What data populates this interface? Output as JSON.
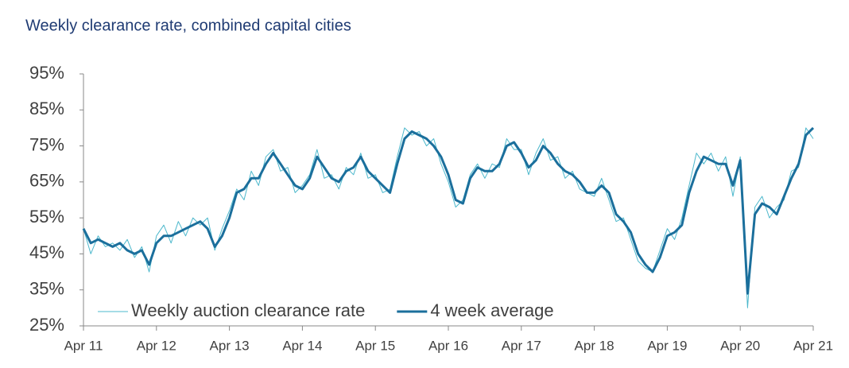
{
  "chart_data": {
    "type": "line",
    "title": "Weekly clearance rate, combined capital cities",
    "x": [
      0,
      0.1,
      0.2,
      0.3,
      0.4,
      0.5,
      0.6,
      0.7,
      0.8,
      0.9,
      1,
      1.1,
      1.2,
      1.3,
      1.4,
      1.5,
      1.6,
      1.7,
      1.8,
      1.9,
      2,
      2.1,
      2.2,
      2.3,
      2.4,
      2.5,
      2.6,
      2.7,
      2.8,
      2.9,
      3,
      3.1,
      3.2,
      3.3,
      3.4,
      3.5,
      3.6,
      3.7,
      3.8,
      3.9,
      4,
      4.1,
      4.2,
      4.3,
      4.4,
      4.5,
      4.6,
      4.7,
      4.8,
      4.9,
      5,
      5.1,
      5.2,
      5.3,
      5.4,
      5.5,
      5.6,
      5.7,
      5.8,
      5.9,
      6,
      6.1,
      6.2,
      6.3,
      6.4,
      6.5,
      6.6,
      6.7,
      6.8,
      6.9,
      7,
      7.1,
      7.2,
      7.3,
      7.4,
      7.5,
      7.6,
      7.7,
      7.8,
      7.9,
      8,
      8.1,
      8.2,
      8.3,
      8.4,
      8.5,
      8.6,
      8.7,
      8.8,
      8.9,
      9,
      9.1,
      9.2,
      9.3,
      9.4,
      9.5,
      9.6,
      9.7,
      9.8,
      9.9,
      10
    ],
    "series": [
      {
        "name": "Weekly auction clearance rate",
        "color": "#4db8cc",
        "values": [
          52,
          45,
          50,
          47,
          48,
          46,
          49,
          44,
          47,
          40,
          50,
          53,
          48,
          54,
          50,
          55,
          53,
          55,
          46,
          52,
          57,
          63,
          60,
          68,
          64,
          72,
          74,
          68,
          69,
          62,
          64,
          67,
          74,
          66,
          67,
          63,
          69,
          67,
          73,
          66,
          67,
          62,
          63,
          72,
          80,
          78,
          79,
          75,
          77,
          70,
          65,
          58,
          60,
          67,
          70,
          66,
          70,
          69,
          77,
          74,
          74,
          67,
          73,
          77,
          71,
          72,
          66,
          68,
          63,
          62,
          61,
          66,
          60,
          54,
          55,
          49,
          43,
          41,
          40,
          46,
          52,
          49,
          55,
          64,
          73,
          70,
          73,
          68,
          72,
          61,
          72,
          30,
          58,
          61,
          55,
          58,
          60,
          68,
          69,
          80,
          77
        ]
      },
      {
        "name": "4 week average",
        "color": "#1b6f9c",
        "values": [
          52,
          48,
          49,
          48,
          47,
          48,
          46,
          45,
          46,
          42,
          48,
          50,
          50,
          51,
          52,
          53,
          54,
          52,
          47,
          50,
          55,
          62,
          63,
          66,
          66,
          70,
          73,
          70,
          67,
          64,
          63,
          66,
          72,
          69,
          66,
          65,
          68,
          69,
          72,
          68,
          66,
          64,
          62,
          70,
          77,
          79,
          78,
          77,
          75,
          72,
          67,
          60,
          59,
          66,
          69,
          68,
          68,
          70,
          75,
          76,
          73,
          69,
          71,
          75,
          73,
          70,
          68,
          67,
          65,
          62,
          62,
          64,
          62,
          56,
          54,
          51,
          45,
          42,
          40,
          44,
          50,
          51,
          53,
          62,
          68,
          72,
          71,
          70,
          70,
          64,
          71,
          34,
          56,
          59,
          58,
          56,
          61,
          66,
          70,
          78,
          80
        ]
      }
    ],
    "xlim": [
      0,
      10
    ],
    "xticks": [
      {
        "value": 0,
        "label": "Apr 11"
      },
      {
        "value": 1,
        "label": "Apr 12"
      },
      {
        "value": 2,
        "label": "Apr 13"
      },
      {
        "value": 3,
        "label": "Apr 14"
      },
      {
        "value": 4,
        "label": "Apr 15"
      },
      {
        "value": 5,
        "label": "Apr 16"
      },
      {
        "value": 6,
        "label": "Apr 17"
      },
      {
        "value": 7,
        "label": "Apr 18"
      },
      {
        "value": 8,
        "label": "Apr 19"
      },
      {
        "value": 9,
        "label": "Apr 20"
      },
      {
        "value": 10,
        "label": "Apr 21"
      }
    ],
    "ylim": [
      25,
      95
    ],
    "yticks": [
      {
        "value": 25,
        "label": "25%"
      },
      {
        "value": 35,
        "label": "35%"
      },
      {
        "value": 45,
        "label": "45%"
      },
      {
        "value": 55,
        "label": "55%"
      },
      {
        "value": 65,
        "label": "65%"
      },
      {
        "value": 75,
        "label": "75%"
      },
      {
        "value": 85,
        "label": "85%"
      },
      {
        "value": 95,
        "label": "95%"
      }
    ],
    "grid": false,
    "legend": "bottom-left"
  }
}
